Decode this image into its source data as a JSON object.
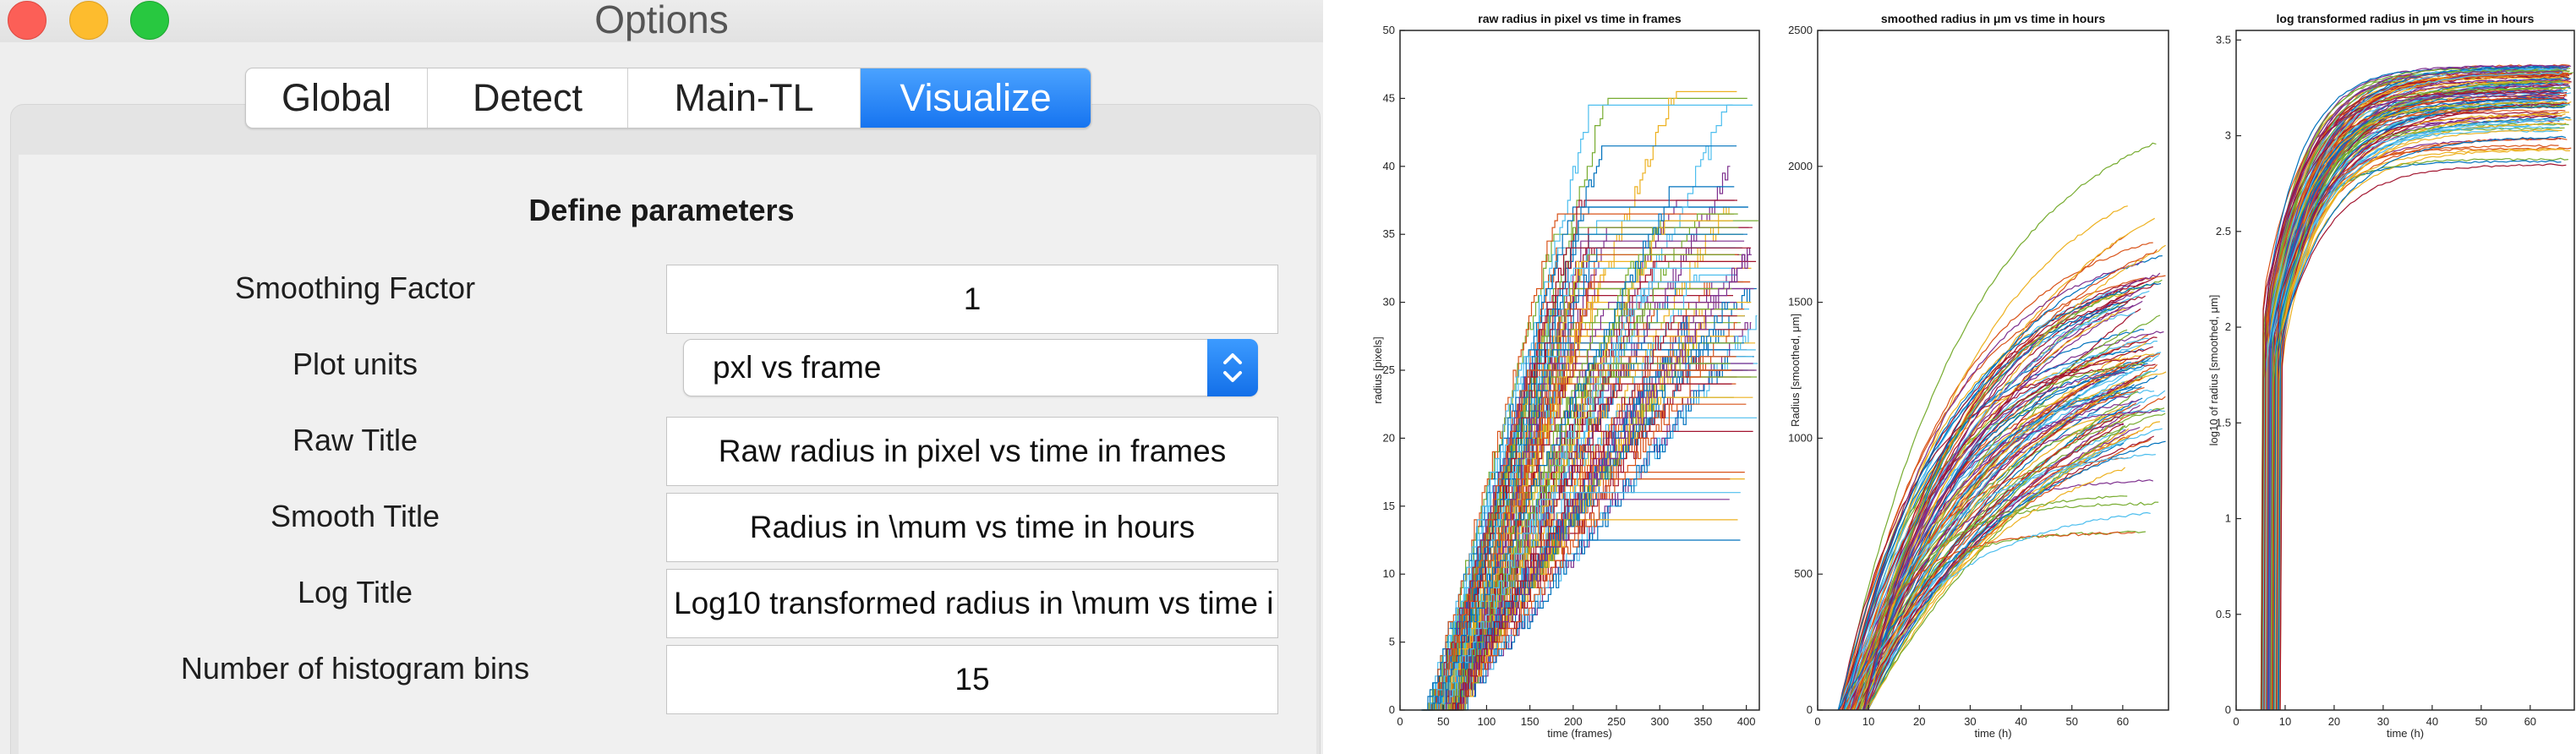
{
  "window": {
    "title": "Options"
  },
  "tabs": [
    {
      "label": "Global",
      "active": false
    },
    {
      "label": "Detect",
      "active": false
    },
    {
      "label": "Main-TL",
      "active": false
    },
    {
      "label": "Visualize",
      "active": true
    }
  ],
  "form": {
    "heading": "Define parameters",
    "smoothing_factor": {
      "label": "Smoothing Factor",
      "value": "1"
    },
    "plot_units": {
      "label": "Plot units",
      "value": "pxl vs frame"
    },
    "raw_title": {
      "label": "Raw Title",
      "value": "Raw radius in pixel vs time in frames"
    },
    "smooth_title": {
      "label": "Smooth Title",
      "value": "Radius in \\mum vs time in hours"
    },
    "log_title": {
      "label": "Log Title",
      "value": "Log10 transformed radius in \\mum vs time i"
    },
    "hist_bins": {
      "label": "Number of histogram bins",
      "value": "15"
    }
  },
  "chart_data": [
    {
      "type": "line",
      "title": "raw radius in pixel vs time in frames",
      "xlabel": "time (frames)",
      "ylabel": "radius [pixels]",
      "xlim": [
        0,
        415
      ],
      "ylim": [
        0,
        50
      ],
      "x_ticks": [
        0,
        50,
        100,
        150,
        200,
        250,
        300,
        350,
        400
      ],
      "y_ticks": [
        0,
        5,
        10,
        15,
        20,
        25,
        30,
        35,
        40,
        45,
        50
      ],
      "grid": false,
      "series_description": "~120 step-like radius traces rising from ~35 frames to plateaus between 13 and 46 pixels",
      "series_count": 120,
      "onset_range": [
        28,
        70
      ],
      "slope_range": [
        0.08,
        0.25
      ],
      "plateau_range": [
        12.5,
        46
      ],
      "plateau_dense_range": [
        24,
        38
      ]
    },
    {
      "type": "line",
      "title": "smoothed radius in μm vs time in hours",
      "xlabel": "time (h)",
      "ylabel": "Radius [smoothed, μm]",
      "xlim": [
        0,
        69
      ],
      "ylim": [
        0,
        2500
      ],
      "x_ticks": [
        0,
        10,
        20,
        30,
        40,
        50,
        60
      ],
      "y_ticks": [
        0,
        500,
        1000,
        1500,
        2000,
        2500
      ],
      "grid": false,
      "series_description": "~120 smoothed traces rising from ~5 h to 650–2300 μm",
      "series_count": 120,
      "onset_range": [
        4,
        10
      ],
      "slope_range": [
        30,
        90
      ],
      "plateau_range": [
        650,
        2300
      ],
      "plateau_dense_range": [
        1100,
        1800
      ]
    },
    {
      "type": "line",
      "title": "log transformed radius in μm vs time in hours",
      "xlabel": "time (h)",
      "ylabel": "log10 of radius [smoothed, μm]",
      "xlim": [
        0,
        69
      ],
      "ylim": [
        0,
        3.55
      ],
      "x_ticks": [
        0,
        10,
        20,
        30,
        40,
        50,
        60
      ],
      "y_ticks": [
        0,
        0.5,
        1,
        1.5,
        2,
        2.5,
        3,
        3.5
      ],
      "grid": false,
      "series_description": "~120 log traces jumping up near 6–9 h and saturating between 2.8 and 3.37",
      "series_count": 120,
      "onset_range": [
        5,
        9
      ],
      "saturation_range": [
        2.8,
        3.37
      ]
    }
  ],
  "series_colors": [
    "#0072bd",
    "#d95319",
    "#edb120",
    "#7e2f8e",
    "#77ac30",
    "#4dbeee",
    "#a2142f"
  ],
  "colors": {
    "tab_active": "#1a78f2",
    "close": "#fc5f57",
    "minimize": "#fdbc2e",
    "maximize": "#28c840"
  },
  "icons": {
    "select_arrows": "up-down-chevron-icon"
  }
}
